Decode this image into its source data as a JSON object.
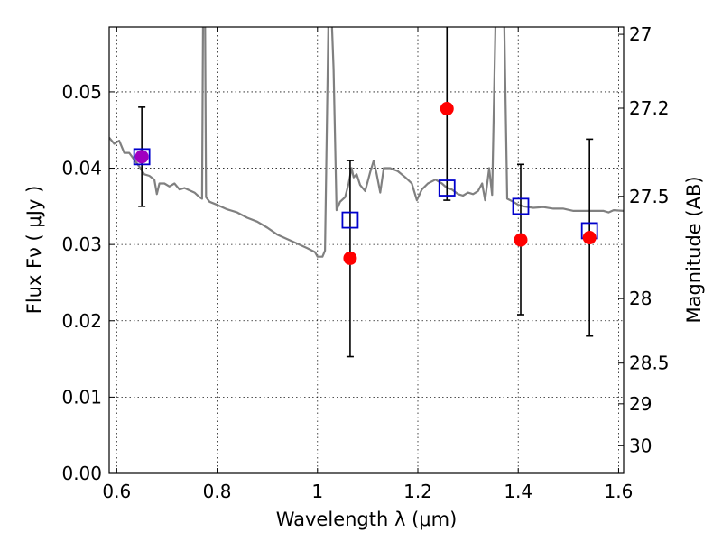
{
  "chart_data": {
    "type": "scatter",
    "title": "",
    "xlabel": "Wavelength  λ (μm)",
    "ylabel": "Flux  Fν  ( μJy )",
    "y2label": "Magnitude (AB)",
    "xlim": [
      0.585,
      1.61
    ],
    "ylim": [
      0.0,
      0.0585
    ],
    "grid": true,
    "xticks": [
      {
        "value": 0.6,
        "label": "0.6"
      },
      {
        "value": 0.8,
        "label": "0.8"
      },
      {
        "value": 1.0,
        "label": "1"
      },
      {
        "value": 1.2,
        "label": "1.2"
      },
      {
        "value": 1.4,
        "label": "1.4"
      },
      {
        "value": 1.6,
        "label": "1.6"
      }
    ],
    "yticks": [
      {
        "value": 0.0,
        "label": "0.00"
      },
      {
        "value": 0.01,
        "label": "0.01"
      },
      {
        "value": 0.02,
        "label": "0.02"
      },
      {
        "value": 0.03,
        "label": "0.03"
      },
      {
        "value": 0.04,
        "label": "0.04"
      },
      {
        "value": 0.05,
        "label": "0.05"
      }
    ],
    "y2ticks": [
      {
        "value": 27,
        "label": "27"
      },
      {
        "value": 27.2,
        "label": "27.2"
      },
      {
        "value": 27.5,
        "label": "27.5"
      },
      {
        "value": 28,
        "label": "28"
      },
      {
        "value": 28.5,
        "label": "28.5"
      },
      {
        "value": 29,
        "label": "29"
      },
      {
        "value": 30,
        "label": "30"
      }
    ],
    "series": [
      {
        "kind": "observed",
        "marker": "circle",
        "color": "#ff0000",
        "points": [
          {
            "x": 0.65,
            "y": 0.0415,
            "err_low": 0.035,
            "err_high": 0.048,
            "overlap_color": "#a000c0"
          },
          {
            "x": 1.065,
            "y": 0.0282,
            "err_low": 0.0153,
            "err_high": 0.041
          },
          {
            "x": 1.258,
            "y": 0.0478,
            "err_low": 0.0358,
            "err_high": 0.06
          },
          {
            "x": 1.405,
            "y": 0.0306,
            "err_low": 0.0208,
            "err_high": 0.0405
          },
          {
            "x": 1.542,
            "y": 0.0309,
            "err_low": 0.018,
            "err_high": 0.0438
          }
        ]
      },
      {
        "kind": "model-synthetic",
        "marker": "square",
        "color": "#0000cc",
        "points": [
          {
            "x": 0.65,
            "y": 0.0415
          },
          {
            "x": 1.065,
            "y": 0.0332
          },
          {
            "x": 1.258,
            "y": 0.0374
          },
          {
            "x": 1.405,
            "y": 0.035
          },
          {
            "x": 1.542,
            "y": 0.0318
          }
        ]
      },
      {
        "kind": "model-spectrum",
        "color": "#808080",
        "points": [
          [
            0.585,
            0.044
          ],
          [
            0.595,
            0.0432
          ],
          [
            0.605,
            0.0436
          ],
          [
            0.615,
            0.042
          ],
          [
            0.625,
            0.042
          ],
          [
            0.635,
            0.0411
          ],
          [
            0.645,
            0.0402
          ],
          [
            0.655,
            0.0392
          ],
          [
            0.665,
            0.039
          ],
          [
            0.675,
            0.0385
          ],
          [
            0.68,
            0.0366
          ],
          [
            0.685,
            0.038
          ],
          [
            0.695,
            0.038
          ],
          [
            0.705,
            0.0376
          ],
          [
            0.715,
            0.038
          ],
          [
            0.725,
            0.0372
          ],
          [
            0.735,
            0.0374
          ],
          [
            0.745,
            0.0371
          ],
          [
            0.755,
            0.0368
          ],
          [
            0.765,
            0.0362
          ],
          [
            0.77,
            0.036
          ],
          [
            0.772,
            0.06
          ],
          [
            0.776,
            0.06
          ],
          [
            0.778,
            0.0362
          ],
          [
            0.785,
            0.0356
          ],
          [
            0.8,
            0.0352
          ],
          [
            0.82,
            0.0346
          ],
          [
            0.84,
            0.0342
          ],
          [
            0.86,
            0.0335
          ],
          [
            0.88,
            0.033
          ],
          [
            0.9,
            0.0322
          ],
          [
            0.92,
            0.0313
          ],
          [
            0.94,
            0.0307
          ],
          [
            0.96,
            0.0301
          ],
          [
            0.98,
            0.0295
          ],
          [
            0.995,
            0.029
          ],
          [
            1.0,
            0.0284
          ],
          [
            1.01,
            0.0284
          ],
          [
            1.015,
            0.0292
          ],
          [
            1.022,
            0.06
          ],
          [
            1.028,
            0.06
          ],
          [
            1.032,
            0.053
          ],
          [
            1.038,
            0.0345
          ],
          [
            1.045,
            0.0356
          ],
          [
            1.055,
            0.0362
          ],
          [
            1.062,
            0.038
          ],
          [
            1.068,
            0.04
          ],
          [
            1.072,
            0.0388
          ],
          [
            1.078,
            0.0392
          ],
          [
            1.085,
            0.0378
          ],
          [
            1.095,
            0.037
          ],
          [
            1.105,
            0.0395
          ],
          [
            1.112,
            0.041
          ],
          [
            1.118,
            0.0392
          ],
          [
            1.125,
            0.0368
          ],
          [
            1.132,
            0.04
          ],
          [
            1.145,
            0.04
          ],
          [
            1.16,
            0.0396
          ],
          [
            1.175,
            0.0388
          ],
          [
            1.188,
            0.038
          ],
          [
            1.198,
            0.0358
          ],
          [
            1.208,
            0.0372
          ],
          [
            1.22,
            0.038
          ],
          [
            1.235,
            0.0385
          ],
          [
            1.248,
            0.038
          ],
          [
            1.258,
            0.0374
          ],
          [
            1.268,
            0.0372
          ],
          [
            1.28,
            0.0366
          ],
          [
            1.29,
            0.0364
          ],
          [
            1.3,
            0.0368
          ],
          [
            1.31,
            0.0366
          ],
          [
            1.32,
            0.037
          ],
          [
            1.328,
            0.038
          ],
          [
            1.334,
            0.0358
          ],
          [
            1.342,
            0.04
          ],
          [
            1.348,
            0.0365
          ],
          [
            1.355,
            0.06
          ],
          [
            1.372,
            0.06
          ],
          [
            1.378,
            0.036
          ],
          [
            1.39,
            0.0356
          ],
          [
            1.4,
            0.0352
          ],
          [
            1.41,
            0.035
          ],
          [
            1.43,
            0.0348
          ],
          [
            1.45,
            0.0349
          ],
          [
            1.47,
            0.0347
          ],
          [
            1.49,
            0.0347
          ],
          [
            1.51,
            0.0344
          ],
          [
            1.53,
            0.0344
          ],
          [
            1.55,
            0.0344
          ],
          [
            1.57,
            0.0344
          ],
          [
            1.58,
            0.0342
          ],
          [
            1.59,
            0.0345
          ],
          [
            1.61,
            0.0344
          ]
        ]
      }
    ]
  }
}
